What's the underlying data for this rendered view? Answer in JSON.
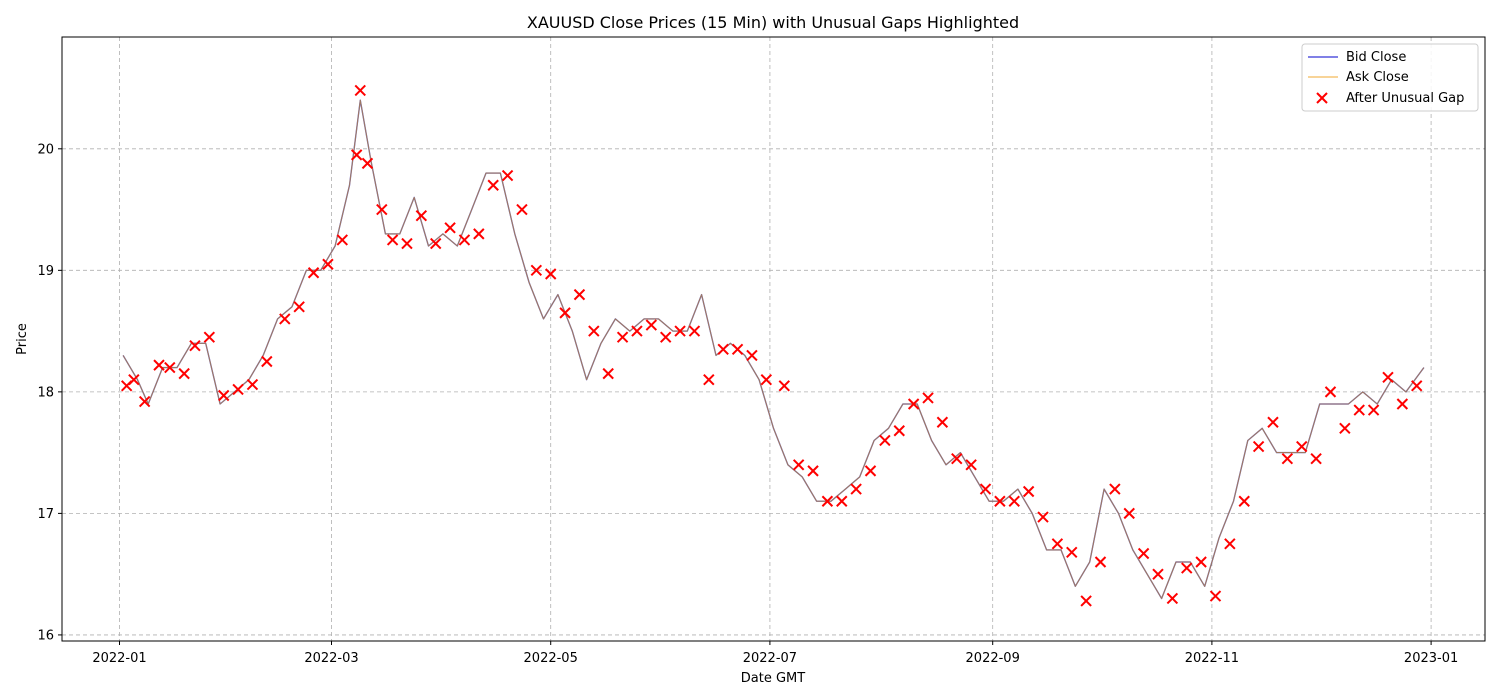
{
  "chart_data": {
    "type": "line",
    "title": "XAUUSD Close Prices (15 Min) with Unusual Gaps Highlighted",
    "xlabel": "Date GMT",
    "ylabel": "Price",
    "x_ticks": [
      "2022-01",
      "2022-03",
      "2022-05",
      "2022-07",
      "2022-09",
      "2022-11",
      "2023-01"
    ],
    "y_ticks": [
      16,
      17,
      18,
      19,
      20
    ],
    "xlim": [
      "2021-12-16",
      "2023-01-16"
    ],
    "ylim": [
      15.95,
      20.92
    ],
    "grid": true,
    "legend_position": "top-right",
    "colors": {
      "bid": "#0000cc",
      "ask": "#f0a830",
      "gap": "#ff0000",
      "blend": "#a0785a"
    },
    "series": [
      {
        "name": "Bid Close",
        "type": "line",
        "x": [
          "2022-01-02",
          "2022-01-06",
          "2022-01-09",
          "2022-01-13",
          "2022-01-17",
          "2022-01-21",
          "2022-01-25",
          "2022-01-29",
          "2022-02-02",
          "2022-02-06",
          "2022-02-10",
          "2022-02-14",
          "2022-02-18",
          "2022-02-22",
          "2022-02-26",
          "2022-03-02",
          "2022-03-06",
          "2022-03-09",
          "2022-03-12",
          "2022-03-16",
          "2022-03-20",
          "2022-03-24",
          "2022-03-28",
          "2022-04-01",
          "2022-04-05",
          "2022-04-09",
          "2022-04-13",
          "2022-04-17",
          "2022-04-21",
          "2022-04-25",
          "2022-04-29",
          "2022-05-03",
          "2022-05-07",
          "2022-05-11",
          "2022-05-15",
          "2022-05-19",
          "2022-05-23",
          "2022-05-27",
          "2022-05-31",
          "2022-06-04",
          "2022-06-08",
          "2022-06-12",
          "2022-06-16",
          "2022-06-20",
          "2022-06-24",
          "2022-06-28",
          "2022-07-02",
          "2022-07-06",
          "2022-07-10",
          "2022-07-14",
          "2022-07-18",
          "2022-07-22",
          "2022-07-26",
          "2022-07-30",
          "2022-08-03",
          "2022-08-07",
          "2022-08-11",
          "2022-08-15",
          "2022-08-19",
          "2022-08-23",
          "2022-08-27",
          "2022-08-31",
          "2022-09-04",
          "2022-09-08",
          "2022-09-12",
          "2022-09-16",
          "2022-09-20",
          "2022-09-24",
          "2022-09-28",
          "2022-10-02",
          "2022-10-06",
          "2022-10-10",
          "2022-10-14",
          "2022-10-18",
          "2022-10-22",
          "2022-10-26",
          "2022-10-30",
          "2022-11-03",
          "2022-11-07",
          "2022-11-11",
          "2022-11-15",
          "2022-11-19",
          "2022-11-23",
          "2022-11-27",
          "2022-12-01",
          "2022-12-05",
          "2022-12-09",
          "2022-12-13",
          "2022-12-17",
          "2022-12-21",
          "2022-12-25",
          "2022-12-30"
        ],
        "values": [
          18.3,
          18.1,
          17.9,
          18.2,
          18.2,
          18.4,
          18.4,
          17.9,
          18.0,
          18.1,
          18.3,
          18.6,
          18.7,
          19.0,
          19.0,
          19.2,
          19.7,
          20.4,
          19.9,
          19.3,
          19.3,
          19.6,
          19.2,
          19.3,
          19.2,
          19.5,
          19.8,
          19.8,
          19.3,
          18.9,
          18.6,
          18.8,
          18.5,
          18.1,
          18.4,
          18.6,
          18.5,
          18.6,
          18.6,
          18.5,
          18.5,
          18.8,
          18.3,
          18.4,
          18.3,
          18.1,
          17.7,
          17.4,
          17.3,
          17.1,
          17.1,
          17.2,
          17.3,
          17.6,
          17.7,
          17.9,
          17.9,
          17.6,
          17.4,
          17.5,
          17.3,
          17.1,
          17.1,
          17.2,
          17.0,
          16.7,
          16.7,
          16.4,
          16.6,
          17.2,
          17.0,
          16.7,
          16.5,
          16.3,
          16.6,
          16.6,
          16.4,
          16.8,
          17.1,
          17.6,
          17.7,
          17.5,
          17.5,
          17.5,
          17.9,
          17.9,
          17.9,
          18.0,
          17.9,
          18.1,
          18.0,
          18.2
        ]
      },
      {
        "name": "Ask Close",
        "type": "line"
      },
      {
        "name": "After Unusual Gap",
        "type": "scatter",
        "x": [
          "2022-01-03",
          "2022-01-05",
          "2022-01-08",
          "2022-01-12",
          "2022-01-15",
          "2022-01-19",
          "2022-01-22",
          "2022-01-26",
          "2022-01-30",
          "2022-02-03",
          "2022-02-07",
          "2022-02-11",
          "2022-02-16",
          "2022-02-20",
          "2022-02-24",
          "2022-02-28",
          "2022-03-04",
          "2022-03-08",
          "2022-03-09",
          "2022-03-11",
          "2022-03-15",
          "2022-03-18",
          "2022-03-22",
          "2022-03-26",
          "2022-03-30",
          "2022-04-03",
          "2022-04-07",
          "2022-04-11",
          "2022-04-15",
          "2022-04-19",
          "2022-04-23",
          "2022-04-27",
          "2022-05-01",
          "2022-05-05",
          "2022-05-09",
          "2022-05-13",
          "2022-05-17",
          "2022-05-21",
          "2022-05-25",
          "2022-05-29",
          "2022-06-02",
          "2022-06-06",
          "2022-06-10",
          "2022-06-14",
          "2022-06-18",
          "2022-06-22",
          "2022-06-26",
          "2022-06-30",
          "2022-07-05",
          "2022-07-09",
          "2022-07-13",
          "2022-07-17",
          "2022-07-21",
          "2022-07-25",
          "2022-07-29",
          "2022-08-02",
          "2022-08-06",
          "2022-08-10",
          "2022-08-14",
          "2022-08-18",
          "2022-08-22",
          "2022-08-26",
          "2022-08-30",
          "2022-09-03",
          "2022-09-07",
          "2022-09-11",
          "2022-09-15",
          "2022-09-19",
          "2022-09-23",
          "2022-09-27",
          "2022-10-01",
          "2022-10-05",
          "2022-10-09",
          "2022-10-13",
          "2022-10-17",
          "2022-10-21",
          "2022-10-25",
          "2022-10-29",
          "2022-11-02",
          "2022-11-06",
          "2022-11-10",
          "2022-11-14",
          "2022-11-18",
          "2022-11-22",
          "2022-11-26",
          "2022-11-30",
          "2022-12-04",
          "2022-12-08",
          "2022-12-12",
          "2022-12-16",
          "2022-12-20",
          "2022-12-24",
          "2022-12-28"
        ],
        "values": [
          18.05,
          18.1,
          17.92,
          18.22,
          18.2,
          18.15,
          18.38,
          18.45,
          17.97,
          18.02,
          18.06,
          18.25,
          18.6,
          18.7,
          18.98,
          19.05,
          19.25,
          19.95,
          20.48,
          19.88,
          19.5,
          19.25,
          19.22,
          19.45,
          19.22,
          19.35,
          19.25,
          19.3,
          19.7,
          19.78,
          19.5,
          19.0,
          18.97,
          18.65,
          18.8,
          18.5,
          18.15,
          18.45,
          18.5,
          18.55,
          18.45,
          18.5,
          18.5,
          18.1,
          18.35,
          18.35,
          18.3,
          18.1,
          18.05,
          17.4,
          17.35,
          17.1,
          17.1,
          17.2,
          17.35,
          17.6,
          17.68,
          17.9,
          17.95,
          17.75,
          17.45,
          17.4,
          17.2,
          17.1,
          17.1,
          17.18,
          16.97,
          16.75,
          16.68,
          16.28,
          16.6,
          17.2,
          17.0,
          16.67,
          16.5,
          16.3,
          16.55,
          16.6,
          16.32,
          16.75,
          17.1,
          17.55,
          17.75,
          17.45,
          17.55,
          17.45,
          18.0,
          17.7,
          17.85,
          17.85,
          18.12,
          17.9,
          18.05
        ]
      }
    ]
  },
  "legend": {
    "items": [
      "Bid Close",
      "Ask Close",
      "After Unusual Gap"
    ]
  }
}
